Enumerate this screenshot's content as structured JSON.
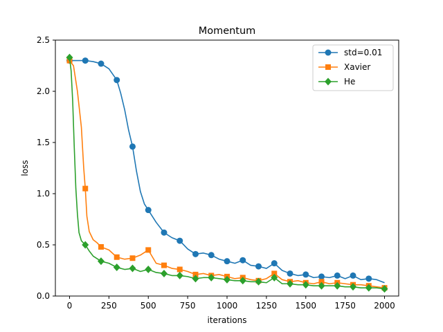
{
  "chart_data": {
    "type": "line",
    "title": "Momentum",
    "xlabel": "iterations",
    "ylabel": "loss",
    "xlim": [
      -90,
      2090
    ],
    "ylim": [
      0.0,
      2.5
    ],
    "xticks": [
      0,
      250,
      500,
      750,
      1000,
      1250,
      1500,
      1750,
      2000
    ],
    "yticks": [
      0.0,
      0.5,
      1.0,
      1.5,
      2.0,
      2.5
    ],
    "xtick_labels": [
      "0",
      "250",
      "500",
      "750",
      "1000",
      "1250",
      "1500",
      "1750",
      "2000"
    ],
    "ytick_labels": [
      "0.0",
      "0.5",
      "1.0",
      "1.5",
      "2.0",
      "2.5"
    ],
    "grid": false,
    "legend_position": "top-right",
    "series": [
      {
        "name": "std=0.01",
        "color": "#1f77b4",
        "marker": "circle",
        "x": [
          0,
          50,
          100,
          150,
          200,
          250,
          300,
          325,
          350,
          375,
          400,
          425,
          450,
          475,
          500,
          550,
          600,
          650,
          700,
          750,
          800,
          850,
          900,
          950,
          1000,
          1050,
          1100,
          1150,
          1200,
          1250,
          1300,
          1350,
          1400,
          1450,
          1500,
          1550,
          1600,
          1650,
          1700,
          1750,
          1800,
          1850,
          1900,
          1950,
          2000
        ],
        "y": [
          2.3,
          2.3,
          2.3,
          2.29,
          2.27,
          2.22,
          2.11,
          1.98,
          1.82,
          1.62,
          1.46,
          1.22,
          1.02,
          0.9,
          0.84,
          0.72,
          0.62,
          0.57,
          0.54,
          0.46,
          0.41,
          0.42,
          0.4,
          0.36,
          0.34,
          0.32,
          0.35,
          0.3,
          0.29,
          0.27,
          0.32,
          0.25,
          0.22,
          0.2,
          0.21,
          0.18,
          0.19,
          0.18,
          0.2,
          0.17,
          0.2,
          0.16,
          0.17,
          0.16,
          0.13
        ],
        "marker_x": [
          0,
          100,
          200,
          300,
          400,
          500,
          600,
          700,
          800,
          900,
          1000,
          1100,
          1200,
          1300,
          1400,
          1500,
          1600,
          1700,
          1800,
          1900
        ],
        "marker_y": [
          2.3,
          2.3,
          2.27,
          2.11,
          1.46,
          0.84,
          0.62,
          0.54,
          0.41,
          0.4,
          0.34,
          0.35,
          0.29,
          0.32,
          0.22,
          0.21,
          0.19,
          0.2,
          0.2,
          0.17
        ]
      },
      {
        "name": "Xavier",
        "color": "#ff7f0e",
        "marker": "square",
        "x": [
          0,
          25,
          50,
          75,
          90,
          100,
          110,
          125,
          150,
          175,
          200,
          250,
          300,
          350,
          400,
          450,
          500,
          550,
          600,
          650,
          700,
          750,
          800,
          850,
          900,
          950,
          1000,
          1050,
          1100,
          1150,
          1200,
          1250,
          1300,
          1350,
          1400,
          1450,
          1500,
          1550,
          1600,
          1650,
          1700,
          1750,
          1800,
          1850,
          1900,
          1950,
          2000
        ],
        "y": [
          2.3,
          2.25,
          2.0,
          1.65,
          1.25,
          1.05,
          0.78,
          0.63,
          0.55,
          0.52,
          0.48,
          0.45,
          0.38,
          0.36,
          0.37,
          0.4,
          0.45,
          0.32,
          0.3,
          0.27,
          0.26,
          0.24,
          0.21,
          0.22,
          0.2,
          0.21,
          0.19,
          0.17,
          0.18,
          0.16,
          0.15,
          0.17,
          0.22,
          0.16,
          0.14,
          0.15,
          0.13,
          0.12,
          0.14,
          0.12,
          0.13,
          0.12,
          0.11,
          0.11,
          0.1,
          0.09,
          0.08
        ],
        "marker_x": [
          0,
          100,
          200,
          300,
          400,
          500,
          600,
          700,
          800,
          900,
          1000,
          1100,
          1200,
          1300,
          1400,
          1500,
          1600,
          1700,
          1800,
          1900,
          2000
        ],
        "marker_y": [
          2.3,
          1.05,
          0.48,
          0.38,
          0.37,
          0.45,
          0.3,
          0.26,
          0.21,
          0.2,
          0.19,
          0.18,
          0.15,
          0.22,
          0.14,
          0.13,
          0.14,
          0.13,
          0.11,
          0.1,
          0.08
        ]
      },
      {
        "name": "He",
        "color": "#2ca02c",
        "marker": "diamond",
        "x": [
          0,
          10,
          20,
          30,
          40,
          50,
          60,
          75,
          100,
          125,
          150,
          200,
          250,
          300,
          350,
          400,
          450,
          500,
          550,
          600,
          650,
          700,
          750,
          800,
          850,
          900,
          950,
          1000,
          1050,
          1100,
          1150,
          1200,
          1250,
          1300,
          1350,
          1400,
          1450,
          1500,
          1550,
          1600,
          1650,
          1700,
          1750,
          1800,
          1850,
          1900,
          1950,
          2000
        ],
        "y": [
          2.33,
          2.2,
          1.9,
          1.45,
          1.05,
          0.8,
          0.62,
          0.54,
          0.5,
          0.44,
          0.39,
          0.34,
          0.32,
          0.28,
          0.26,
          0.27,
          0.24,
          0.26,
          0.23,
          0.22,
          0.2,
          0.2,
          0.19,
          0.17,
          0.18,
          0.18,
          0.17,
          0.16,
          0.15,
          0.15,
          0.14,
          0.14,
          0.13,
          0.18,
          0.12,
          0.12,
          0.11,
          0.11,
          0.1,
          0.1,
          0.1,
          0.1,
          0.09,
          0.09,
          0.08,
          0.08,
          0.08,
          0.07
        ],
        "marker_x": [
          0,
          100,
          200,
          300,
          400,
          500,
          600,
          700,
          800,
          900,
          1000,
          1100,
          1200,
          1300,
          1400,
          1500,
          1600,
          1700,
          1800,
          1900,
          2000
        ],
        "marker_y": [
          2.33,
          0.5,
          0.34,
          0.28,
          0.27,
          0.26,
          0.22,
          0.2,
          0.17,
          0.18,
          0.16,
          0.15,
          0.14,
          0.18,
          0.12,
          0.11,
          0.1,
          0.1,
          0.09,
          0.08,
          0.07
        ]
      }
    ]
  }
}
